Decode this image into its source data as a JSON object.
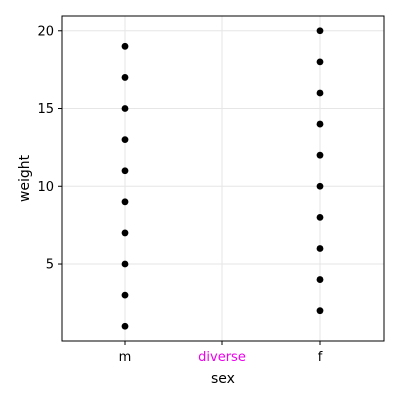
{
  "chart_data": {
    "type": "scatter",
    "xlabel": "sex",
    "ylabel": "weight",
    "categories": [
      "m",
      "diverse",
      "f"
    ],
    "category_colors": [
      "#000000",
      "#ee00ee",
      "#000000"
    ],
    "yticks": [
      5,
      10,
      15,
      20
    ],
    "yticklabels": [
      "5",
      "10",
      "15",
      "20"
    ],
    "ylim": [
      0.05,
      20.95
    ],
    "grid": true,
    "series": [
      {
        "points": [
          {
            "x": "m",
            "y": 1
          },
          {
            "x": "m",
            "y": 3
          },
          {
            "x": "m",
            "y": 5
          },
          {
            "x": "m",
            "y": 7
          },
          {
            "x": "m",
            "y": 9
          },
          {
            "x": "m",
            "y": 11
          },
          {
            "x": "m",
            "y": 13
          },
          {
            "x": "m",
            "y": 15
          },
          {
            "x": "m",
            "y": 17
          },
          {
            "x": "m",
            "y": 19
          },
          {
            "x": "f",
            "y": 2
          },
          {
            "x": "f",
            "y": 4
          },
          {
            "x": "f",
            "y": 6
          },
          {
            "x": "f",
            "y": 8
          },
          {
            "x": "f",
            "y": 10
          },
          {
            "x": "f",
            "y": 12
          },
          {
            "x": "f",
            "y": 14
          },
          {
            "x": "f",
            "y": 16
          },
          {
            "x": "f",
            "y": 18
          },
          {
            "x": "f",
            "y": 20
          }
        ],
        "color": "#000000"
      }
    ]
  }
}
